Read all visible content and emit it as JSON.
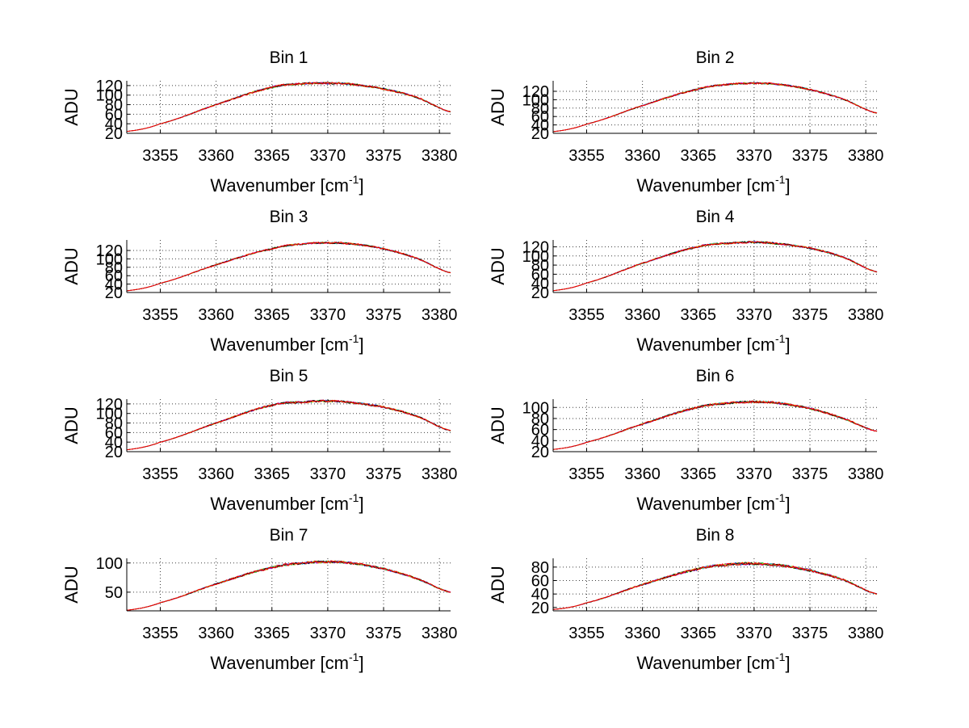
{
  "figure": {
    "background": "#ffffff"
  },
  "series_colors": [
    "#0000ff",
    "#00a000",
    "#00c0c0",
    "#c000c0",
    "#c0c000",
    "#000000",
    "#ff0000"
  ],
  "chart_data": [
    {
      "type": "line",
      "title": "Bin 1",
      "xlabel": "Wavenumber [cm",
      "xlabel_sup": "-1",
      "xlabel_end": "]",
      "ylabel": "ADU",
      "xlim": [
        3352,
        3381
      ],
      "ylim": [
        20,
        130
      ],
      "xticks": [
        3355,
        3360,
        3365,
        3370,
        3375,
        3380
      ],
      "yticks": [
        20,
        40,
        60,
        80,
        100,
        120
      ],
      "x": [
        3352,
        3355,
        3360,
        3365,
        3368,
        3370,
        3372,
        3375,
        3378,
        3381
      ],
      "y": [
        24,
        40,
        80,
        116,
        124,
        125,
        123,
        113,
        95,
        65
      ]
    },
    {
      "type": "line",
      "title": "Bin 2",
      "xlabel": "Wavenumber [cm",
      "xlabel_sup": "-1",
      "xlabel_end": "]",
      "ylabel": "ADU",
      "xlim": [
        3352,
        3381
      ],
      "ylim": [
        20,
        145
      ],
      "xticks": [
        3355,
        3360,
        3365,
        3370,
        3375,
        3380
      ],
      "yticks": [
        20,
        40,
        60,
        80,
        100,
        120
      ],
      "x": [
        3352,
        3355,
        3360,
        3365,
        3368,
        3370,
        3372,
        3375,
        3378,
        3381
      ],
      "y": [
        24,
        42,
        86,
        125,
        137,
        139,
        137,
        124,
        101,
        68
      ]
    },
    {
      "type": "line",
      "title": "Bin 3",
      "xlabel": "Wavenumber [cm",
      "xlabel_sup": "-1",
      "xlabel_end": "]",
      "ylabel": "ADU",
      "xlim": [
        3352,
        3381
      ],
      "ylim": [
        20,
        145
      ],
      "xticks": [
        3355,
        3360,
        3365,
        3370,
        3375,
        3380
      ],
      "yticks": [
        20,
        40,
        60,
        80,
        100,
        120
      ],
      "x": [
        3352,
        3355,
        3360,
        3365,
        3368,
        3370,
        3372,
        3375,
        3378,
        3381
      ],
      "y": [
        24,
        42,
        86,
        124,
        136,
        138,
        136,
        124,
        101,
        67
      ]
    },
    {
      "type": "line",
      "title": "Bin 4",
      "xlabel": "Wavenumber [cm",
      "xlabel_sup": "-1",
      "xlabel_end": "]",
      "ylabel": "ADU",
      "xlim": [
        3352,
        3381
      ],
      "ylim": [
        20,
        135
      ],
      "xticks": [
        3355,
        3360,
        3365,
        3370,
        3375,
        3380
      ],
      "yticks": [
        20,
        40,
        60,
        80,
        100,
        120
      ],
      "x": [
        3352,
        3355,
        3360,
        3365,
        3368,
        3370,
        3372,
        3375,
        3378,
        3381
      ],
      "y": [
        24,
        41,
        84,
        120,
        128,
        130,
        127,
        117,
        97,
        65
      ]
    },
    {
      "type": "line",
      "title": "Bin 5",
      "xlabel": "Wavenumber [cm",
      "xlabel_sup": "-1",
      "xlabel_end": "]",
      "ylabel": "ADU",
      "xlim": [
        3352,
        3381
      ],
      "ylim": [
        20,
        130
      ],
      "xticks": [
        3355,
        3360,
        3365,
        3370,
        3375,
        3380
      ],
      "yticks": [
        20,
        40,
        60,
        80,
        100,
        120
      ],
      "x": [
        3352,
        3355,
        3360,
        3365,
        3368,
        3370,
        3372,
        3375,
        3378,
        3381
      ],
      "y": [
        24,
        40,
        80,
        117,
        124,
        126,
        123,
        113,
        94,
        64
      ]
    },
    {
      "type": "line",
      "title": "Bin 6",
      "xlabel": "Wavenumber [cm",
      "xlabel_sup": "-1",
      "xlabel_end": "]",
      "ylabel": "ADU",
      "xlim": [
        3352,
        3381
      ],
      "ylim": [
        20,
        115
      ],
      "xticks": [
        3355,
        3360,
        3365,
        3370,
        3375,
        3380
      ],
      "yticks": [
        20,
        40,
        60,
        80,
        100
      ],
      "x": [
        3352,
        3355,
        3360,
        3365,
        3368,
        3370,
        3372,
        3375,
        3378,
        3381
      ],
      "y": [
        24,
        37,
        70,
        100,
        108,
        110,
        108,
        98,
        80,
        57
      ]
    },
    {
      "type": "line",
      "title": "Bin 7",
      "xlabel": "Wavenumber [cm",
      "xlabel_sup": "-1",
      "xlabel_end": "]",
      "ylabel": "ADU",
      "xlim": [
        3352,
        3381
      ],
      "ylim": [
        18,
        108
      ],
      "xticks": [
        3355,
        3360,
        3365,
        3370,
        3375,
        3380
      ],
      "yticks": [
        50,
        100
      ],
      "x": [
        3352,
        3355,
        3360,
        3365,
        3368,
        3370,
        3372,
        3375,
        3378,
        3381
      ],
      "y": [
        19,
        32,
        64,
        92,
        100,
        102,
        100,
        90,
        73,
        50
      ]
    },
    {
      "type": "line",
      "title": "Bin 8",
      "xlabel": "Wavenumber [cm",
      "xlabel_sup": "-1",
      "xlabel_end": "]",
      "ylabel": "ADU",
      "xlim": [
        3352,
        3381
      ],
      "ylim": [
        15,
        93
      ],
      "xticks": [
        3355,
        3360,
        3365,
        3370,
        3375,
        3380
      ],
      "yticks": [
        20,
        40,
        60,
        80
      ],
      "x": [
        3352,
        3355,
        3360,
        3365,
        3368,
        3370,
        3372,
        3375,
        3378,
        3381
      ],
      "y": [
        17,
        27,
        54,
        77,
        84,
        85,
        83,
        75,
        61,
        40
      ]
    }
  ]
}
